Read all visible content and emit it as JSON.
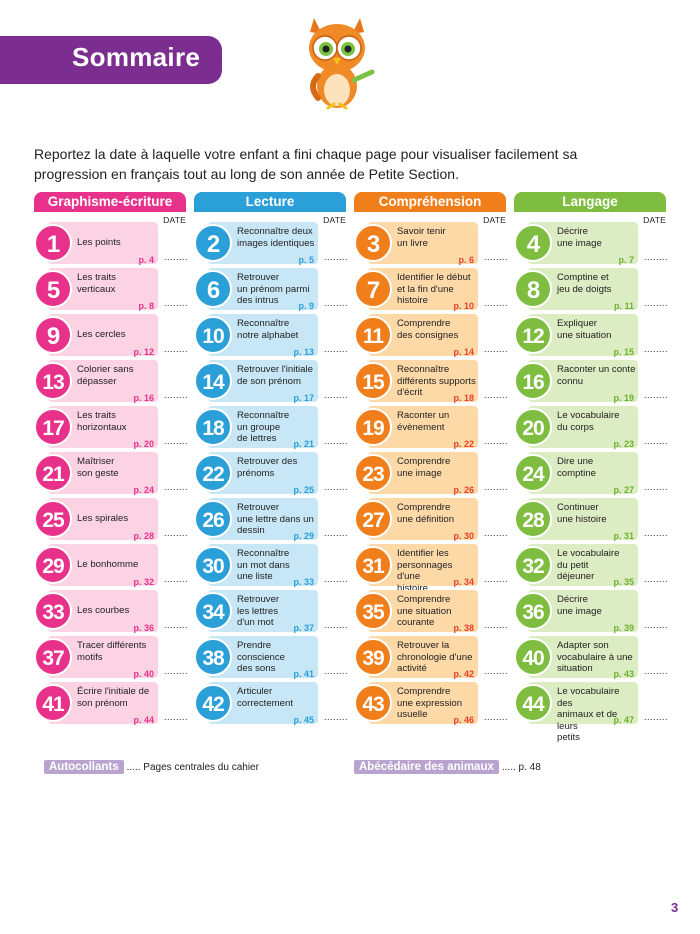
{
  "title": "Sommaire",
  "intro": "Reportez la date à laquelle votre enfant a fini chaque page pour visualiser facilement sa progression en français tout au long de son année de Petite Section.",
  "date_label": "DATE",
  "dots": "........",
  "columns": [
    {
      "header": "Graphisme-écriture",
      "header_color": "#e8318b",
      "box_color": "#fbd3e3",
      "num_color": "#e8318b",
      "page_color": "#e8318b",
      "items": [
        {
          "num": "1",
          "lines": [
            "Les points"
          ],
          "page": "p. 4"
        },
        {
          "num": "5",
          "lines": [
            "Les traits",
            "verticaux"
          ],
          "page": "p. 8"
        },
        {
          "num": "9",
          "lines": [
            "Les cercles"
          ],
          "page": "p. 12"
        },
        {
          "num": "13",
          "lines": [
            "Colorier sans",
            "dépasser"
          ],
          "page": "p. 16"
        },
        {
          "num": "17",
          "lines": [
            "Les traits",
            "horizontaux"
          ],
          "page": "p. 20"
        },
        {
          "num": "21",
          "lines": [
            "Maîtriser",
            "son geste"
          ],
          "page": "p. 24"
        },
        {
          "num": "25",
          "lines": [
            "Les spirales"
          ],
          "page": "p. 28"
        },
        {
          "num": "29",
          "lines": [
            "Le bonhomme"
          ],
          "page": "p. 32"
        },
        {
          "num": "33",
          "lines": [
            "Les courbes"
          ],
          "page": "p. 36"
        },
        {
          "num": "37",
          "lines": [
            "Tracer différents",
            "motifs"
          ],
          "page": "p. 40"
        },
        {
          "num": "41",
          "lines": [
            "Écrire l'initiale de",
            "son prénom"
          ],
          "page": "p. 44"
        }
      ]
    },
    {
      "header": "Lecture",
      "header_color": "#2a9fd8",
      "box_color": "#c7e7f6",
      "num_color": "#2a9fd8",
      "page_color": "#2a9fd8",
      "items": [
        {
          "num": "2",
          "lines": [
            "Reconnaître deux",
            "images identiques"
          ],
          "page": "p. 5"
        },
        {
          "num": "6",
          "lines": [
            "Retrouver",
            "un prénom parmi",
            "des intrus"
          ],
          "page": "p. 9"
        },
        {
          "num": "10",
          "lines": [
            "Reconnaître",
            "notre alphabet"
          ],
          "page": "p. 13"
        },
        {
          "num": "14",
          "lines": [
            "Retrouver l'initiale",
            "de son prénom"
          ],
          "page": "p. 17"
        },
        {
          "num": "18",
          "lines": [
            "Reconnaître",
            "un groupe",
            "de lettres"
          ],
          "page": "p. 21"
        },
        {
          "num": "22",
          "lines": [
            "Retrouver des",
            "prénoms"
          ],
          "page": "p. 25"
        },
        {
          "num": "26",
          "lines": [
            "Retrouver",
            "une lettre dans un",
            "dessin"
          ],
          "page": "p. 29"
        },
        {
          "num": "30",
          "lines": [
            "Reconnaître",
            "un mot dans",
            "une liste"
          ],
          "page": "p. 33"
        },
        {
          "num": "34",
          "lines": [
            "Retrouver",
            "les lettres",
            "d'un mot"
          ],
          "page": "p. 37"
        },
        {
          "num": "38",
          "lines": [
            "Prendre",
            "conscience",
            "des sons"
          ],
          "page": "p. 41"
        },
        {
          "num": "42",
          "lines": [
            "Articuler",
            "correctement"
          ],
          "page": "p. 45"
        }
      ]
    },
    {
      "header": "Compréhension",
      "header_color": "#f07f1b",
      "box_color": "#fdd9a8",
      "num_color": "#f07f1b",
      "page_color": "#e6402a",
      "items": [
        {
          "num": "3",
          "lines": [
            "Savoir tenir",
            "un livre"
          ],
          "page": "p. 6"
        },
        {
          "num": "7",
          "lines": [
            "Identifier le début",
            "et la fin d'une",
            "histoire"
          ],
          "page": "p. 10"
        },
        {
          "num": "11",
          "lines": [
            "Comprendre",
            "des consignes"
          ],
          "page": "p. 14"
        },
        {
          "num": "15",
          "lines": [
            "Reconnaître",
            "différents supports",
            "d'écrit"
          ],
          "page": "p. 18"
        },
        {
          "num": "19",
          "lines": [
            "Raconter un",
            "évènement"
          ],
          "page": "p. 22"
        },
        {
          "num": "23",
          "lines": [
            "Comprendre",
            "une image"
          ],
          "page": "p. 26"
        },
        {
          "num": "27",
          "lines": [
            "Comprendre",
            "une définition"
          ],
          "page": "p. 30"
        },
        {
          "num": "31",
          "lines": [
            "Identifier les",
            "personnages d'une",
            "histoire"
          ],
          "page": "p. 34"
        },
        {
          "num": "35",
          "lines": [
            "Comprendre",
            "une situation",
            "courante"
          ],
          "page": "p. 38"
        },
        {
          "num": "39",
          "lines": [
            "Retrouver la",
            "chronologie d'une",
            "activité"
          ],
          "page": "p. 42"
        },
        {
          "num": "43",
          "lines": [
            "Comprendre",
            "une expression",
            "usuelle"
          ],
          "page": "p. 46"
        }
      ]
    },
    {
      "header": "Langage",
      "header_color": "#7ebd3f",
      "box_color": "#dcedc4",
      "num_color": "#7ebd3f",
      "page_color": "#6fb02f",
      "items": [
        {
          "num": "4",
          "lines": [
            "Décrire",
            "une image"
          ],
          "page": "p. 7"
        },
        {
          "num": "8",
          "lines": [
            "Comptine et",
            "jeu de doigts"
          ],
          "page": "p. 11"
        },
        {
          "num": "12",
          "lines": [
            "Expliquer",
            "une situation"
          ],
          "page": "p. 15"
        },
        {
          "num": "16",
          "lines": [
            "Raconter un conte",
            "connu"
          ],
          "page": "p. 19"
        },
        {
          "num": "20",
          "lines": [
            "Le vocabulaire",
            "du corps"
          ],
          "page": "p. 23"
        },
        {
          "num": "24",
          "lines": [
            "Dire une",
            "comptine"
          ],
          "page": "p. 27"
        },
        {
          "num": "28",
          "lines": [
            "Continuer",
            "une histoire"
          ],
          "page": "p. 31"
        },
        {
          "num": "32",
          "lines": [
            "Le vocabulaire",
            "du petit",
            "déjeuner"
          ],
          "page": "p. 35"
        },
        {
          "num": "36",
          "lines": [
            "Décrire",
            "une image"
          ],
          "page": "p. 39"
        },
        {
          "num": "40",
          "lines": [
            "Adapter son",
            "vocabulaire à une",
            "situation"
          ],
          "page": "p. 43"
        },
        {
          "num": "44",
          "lines": [
            "Le vocabulaire des",
            "animaux et de leurs",
            "petits"
          ],
          "page": "p. 47"
        }
      ]
    }
  ],
  "extras": [
    {
      "tag": "Autocollants",
      "text": "..... Pages centrales du cahier"
    },
    {
      "tag": "Abécédaire des animaux",
      "text": "..... p. 48"
    }
  ],
  "page_number": "3"
}
